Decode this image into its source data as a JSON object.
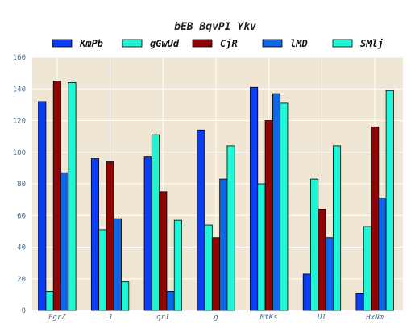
{
  "chart_data": {
    "type": "bar",
    "title": "bEB BqvPI Ykv",
    "xlabel": "",
    "ylabel": "",
    "ylim": [
      0,
      160
    ],
    "yticks": [
      0,
      20,
      40,
      60,
      80,
      100,
      120,
      140,
      160
    ],
    "grid": true,
    "legend_position": "top",
    "plot_background": "#efe7d3",
    "categories": [
      "FgrZ",
      "J",
      "qrI",
      "g",
      "MtKs",
      "UI",
      "HxNm"
    ],
    "series": [
      {
        "name": "KmPb",
        "color": "#0b3ef2",
        "values": [
          132,
          96,
          97,
          114,
          141,
          23,
          11
        ]
      },
      {
        "name": "gGwUd",
        "color": "#1ff5d2",
        "values": [
          12,
          51,
          111,
          54,
          80,
          83,
          53
        ]
      },
      {
        "name": "CjR",
        "color": "#8f0303",
        "values": [
          145,
          94,
          75,
          46,
          120,
          64,
          116
        ]
      },
      {
        "name": "lMD",
        "color": "#0f67e8",
        "values": [
          87,
          58,
          12,
          83,
          137,
          46,
          71
        ]
      },
      {
        "name": "SMlj",
        "color": "#1ef8d6",
        "values": [
          144,
          18,
          57,
          104,
          131,
          104,
          139
        ]
      }
    ]
  }
}
